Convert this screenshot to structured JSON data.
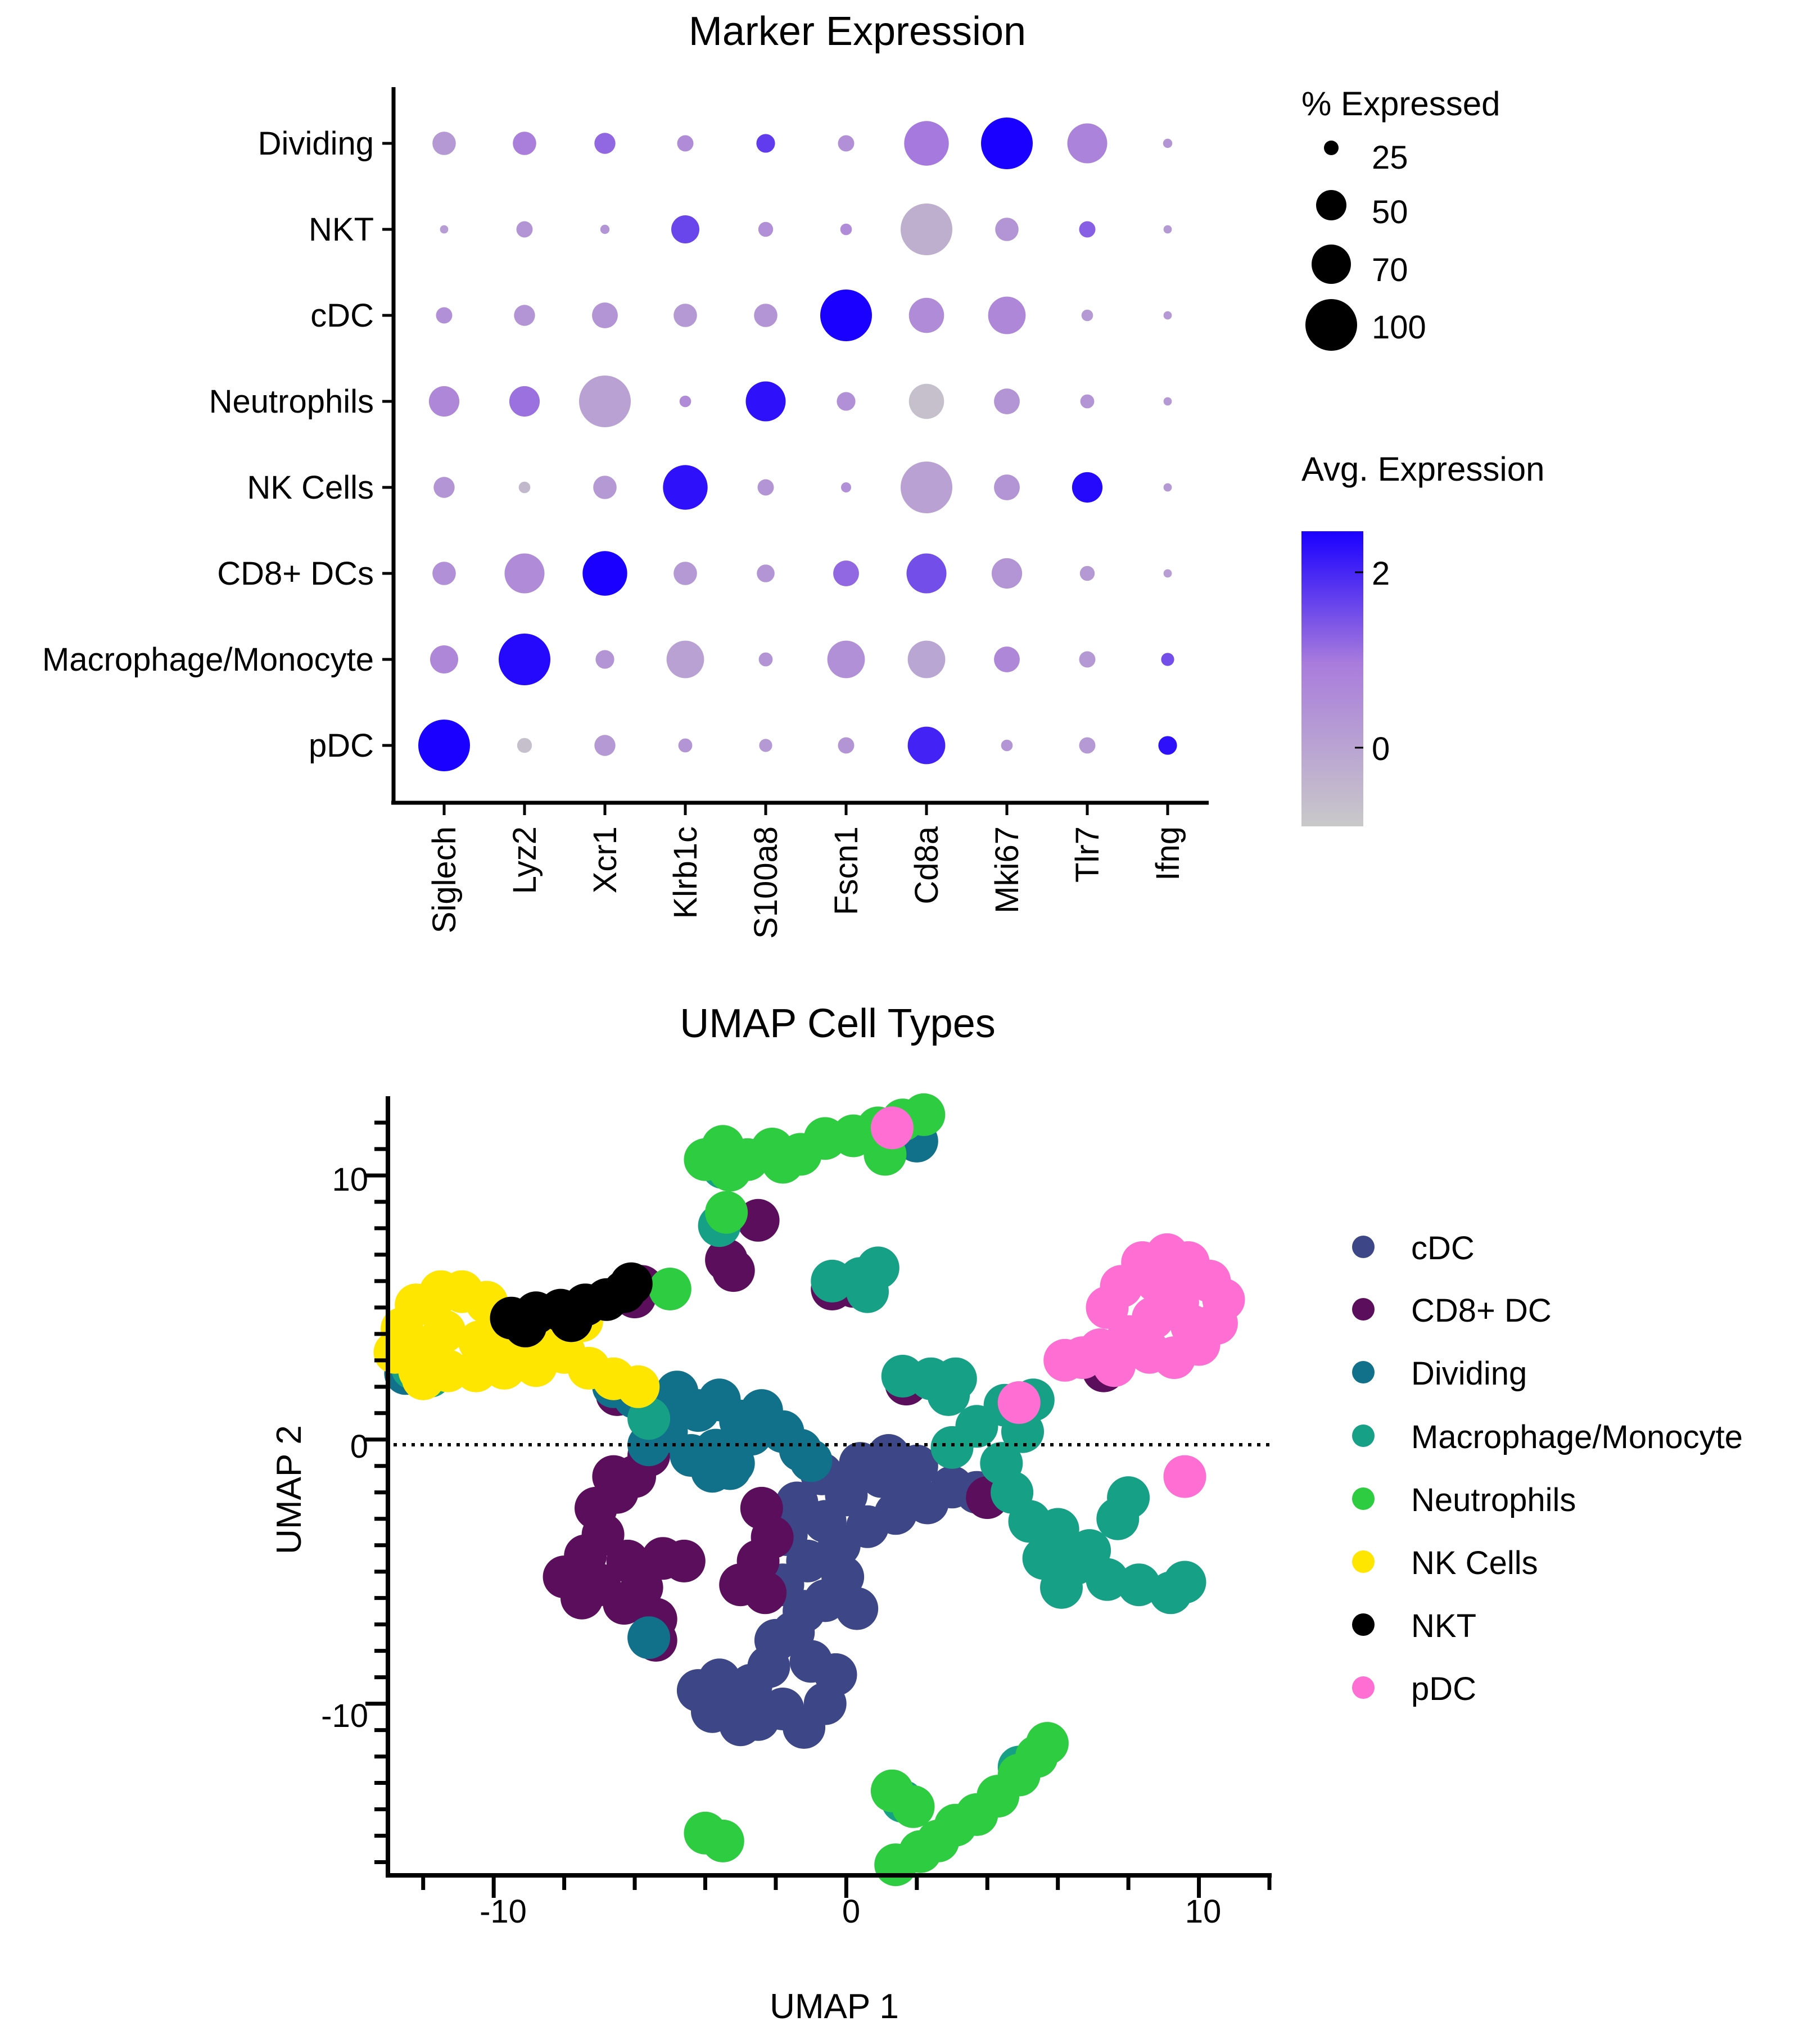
{
  "chart_data": [
    {
      "type": "dotplot",
      "title": "Marker Expression",
      "genes": [
        "Siglech",
        "Lyz2",
        "Xcr1",
        "Klrb1c",
        "S100a8",
        "Fscn1",
        "Cd8a",
        "Mki67",
        "Tlr7",
        "Ifng"
      ],
      "cell_types": [
        "Dividing",
        "NKT",
        "cDC",
        "Neutrophils",
        "NK Cells",
        "CD8+ DCs",
        "Macrophage/Monocyte",
        "pDC"
      ],
      "pct_expressed": [
        [
          40,
          40,
          35,
          25,
          30,
          25,
          85,
          100,
          75,
          10
        ],
        [
          8,
          25,
          10,
          50,
          22,
          15,
          100,
          40,
          25,
          8
        ],
        [
          25,
          35,
          45,
          40,
          40,
          100,
          65,
          70,
          15,
          8
        ],
        [
          55,
          55,
          100,
          15,
          75,
          30,
          65,
          45,
          20,
          8
        ],
        [
          35,
          15,
          40,
          85,
          25,
          12,
          100,
          45,
          55,
          8
        ],
        [
          40,
          75,
          85,
          40,
          28,
          45,
          75,
          55,
          22,
          8
        ],
        [
          50,
          100,
          30,
          70,
          20,
          70,
          70,
          45,
          25,
          18
        ],
        [
          100,
          22,
          35,
          20,
          18,
          25,
          70,
          15,
          25,
          30
        ]
      ],
      "avg_expression": [
        [
          0.3,
          0.9,
          1.2,
          0.6,
          1.7,
          0.5,
          1.0,
          2.4,
          0.8,
          0.4
        ],
        [
          0.2,
          0.4,
          0.4,
          1.6,
          0.5,
          0.6,
          -0.2,
          0.4,
          1.3,
          0.3
        ],
        [
          0.5,
          0.4,
          0.4,
          0.3,
          0.4,
          2.4,
          0.6,
          0.7,
          0.3,
          0.3
        ],
        [
          0.7,
          1.1,
          0.1,
          0.6,
          2.2,
          0.5,
          -0.6,
          0.4,
          0.4,
          0.3
        ],
        [
          0.4,
          -0.4,
          0.3,
          2.2,
          0.4,
          0.5,
          0.1,
          0.4,
          2.3,
          0.3
        ],
        [
          0.5,
          0.6,
          2.4,
          0.3,
          0.4,
          1.2,
          1.5,
          0.4,
          0.3,
          0.2
        ],
        [
          0.7,
          2.3,
          0.4,
          0.1,
          0.4,
          0.5,
          0.0,
          0.7,
          0.3,
          1.5
        ],
        [
          2.4,
          -0.6,
          0.3,
          0.4,
          0.3,
          0.4,
          2.0,
          0.4,
          0.3,
          2.2
        ]
      ],
      "size_legend": {
        "title": "% Expressed",
        "values": [
          25,
          50,
          70,
          100
        ]
      },
      "color_legend": {
        "title": "Avg. Expression",
        "ticks": [
          "2",
          "0"
        ],
        "range": [
          -0.8,
          2.4
        ],
        "colors": [
          "#c9c9c9",
          "#a97cdc",
          "#1a00ff"
        ]
      }
    },
    {
      "type": "scatter",
      "title": "UMAP Cell Types",
      "xlabel": "UMAP 1",
      "ylabel": "UMAP 2",
      "xlim": [
        -13,
        12
      ],
      "ylim": [
        -16.5,
        13
      ],
      "x_ticks": [
        "-10",
        "0",
        "10"
      ],
      "y_ticks": [
        "10",
        "0",
        "-10"
      ],
      "reference_line": {
        "y": 0,
        "style": "dotted"
      },
      "legend": [
        {
          "name": "cDC",
          "color": "#3d4687"
        },
        {
          "name": "CD8+ DC",
          "color": "#5b0e5b"
        },
        {
          "name": "Dividing",
          "color": "#11708a"
        },
        {
          "name": "Macrophage/Monocyte",
          "color": "#16a085"
        },
        {
          "name": "Neutrophils",
          "color": "#2ecc40"
        },
        {
          "name": "NK Cells",
          "color": "#ffe600"
        },
        {
          "name": "NKT",
          "color": "#000000"
        },
        {
          "name": "pDC",
          "color": "#ff6ed2"
        }
      ],
      "clusters": [
        {
          "type": "cDC",
          "points": [
            [
              -4.2,
              -9.5
            ],
            [
              -3.8,
              -10.3
            ],
            [
              -3.2,
              -9.9
            ],
            [
              -2.5,
              -10.6
            ],
            [
              -1.8,
              -10.2
            ],
            [
              -1.2,
              -10.9
            ],
            [
              -0.6,
              -10.0
            ],
            [
              -3.6,
              -9.1
            ],
            [
              -2.2,
              -8.6
            ],
            [
              -1.0,
              -8.4
            ],
            [
              -0.3,
              -8.9
            ],
            [
              -2.0,
              -7.6
            ],
            [
              -1.2,
              -6.5
            ],
            [
              -1.8,
              -5.5
            ],
            [
              -1.1,
              -4.6
            ],
            [
              -1.7,
              -3.6
            ],
            [
              -1.4,
              -2.4
            ],
            [
              -0.6,
              -3.1
            ],
            [
              -0.2,
              -4.0
            ],
            [
              0.6,
              -3.3
            ],
            [
              1.4,
              -2.8
            ],
            [
              1.6,
              -2.0
            ],
            [
              2.3,
              -2.4
            ],
            [
              3.0,
              -1.8
            ],
            [
              3.7,
              -2.0
            ],
            [
              2.0,
              -1.0
            ],
            [
              1.0,
              -1.4
            ],
            [
              0.0,
              -2.1
            ],
            [
              -0.7,
              -1.3
            ],
            [
              0.4,
              -0.9
            ],
            [
              1.2,
              -0.6
            ],
            [
              -0.1,
              -5.2
            ],
            [
              -0.6,
              -6.1
            ],
            [
              0.3,
              -6.4
            ],
            [
              -1.5,
              -7.3
            ],
            [
              -2.7,
              -9.3
            ],
            [
              -3.0,
              -10.8
            ]
          ]
        },
        {
          "type": "CD8+ DC",
          "points": [
            [
              -8.0,
              -5.2
            ],
            [
              -7.5,
              -6.0
            ],
            [
              -7.0,
              -5.5
            ],
            [
              -7.4,
              -4.4
            ],
            [
              -6.9,
              -3.6
            ],
            [
              -7.1,
              -2.6
            ],
            [
              -6.5,
              -2.0
            ],
            [
              -6.0,
              -1.4
            ],
            [
              -5.6,
              -0.6
            ],
            [
              -6.2,
              -4.6
            ],
            [
              -5.8,
              -5.6
            ],
            [
              -5.4,
              -6.8
            ],
            [
              -5.4,
              -7.6
            ],
            [
              -6.3,
              -6.2
            ],
            [
              -5.2,
              -4.5
            ],
            [
              -4.6,
              -4.6
            ],
            [
              -6.6,
              -1.4
            ],
            [
              -3.0,
              -5.5
            ],
            [
              -2.3,
              -5.8
            ],
            [
              -2.1,
              -3.7
            ],
            [
              -2.4,
              -2.6
            ],
            [
              -2.5,
              -4.6
            ],
            [
              -9.8,
              3.9
            ],
            [
              -8.5,
              4.1
            ],
            [
              -6.0,
              5.4
            ],
            [
              -5.8,
              5.8
            ],
            [
              -3.2,
              6.4
            ],
            [
              -3.4,
              6.8
            ],
            [
              -2.5,
              8.3
            ],
            [
              -0.4,
              5.7
            ],
            [
              0.2,
              5.8
            ],
            [
              1.7,
              2.1
            ],
            [
              2.8,
              2.0
            ],
            [
              4.0,
              -2.2
            ],
            [
              7.3,
              2.6
            ],
            [
              -6.5,
              1.7
            ]
          ]
        },
        {
          "type": "Dividing",
          "points": [
            [
              -6.6,
              2.0
            ],
            [
              -6.0,
              1.6
            ],
            [
              -5.4,
              1.0
            ],
            [
              -4.8,
              1.8
            ],
            [
              -4.2,
              1.1
            ],
            [
              -3.6,
              1.5
            ],
            [
              -3.0,
              0.7
            ],
            [
              -2.4,
              1.1
            ],
            [
              -1.8,
              0.3
            ],
            [
              -1.3,
              -0.4
            ],
            [
              -4.4,
              -0.6
            ],
            [
              -3.7,
              -0.4
            ],
            [
              -3.2,
              -0.9
            ],
            [
              -5.1,
              0.3
            ],
            [
              -5.6,
              -0.2
            ],
            [
              -3.8,
              -1.2
            ],
            [
              -2.7,
              0.2
            ],
            [
              -1.0,
              -0.8
            ],
            [
              -12.5,
              2.5
            ],
            [
              2.0,
              11.3
            ],
            [
              -5.6,
              -7.5
            ],
            [
              -3.3,
              -1.1
            ]
          ]
        },
        {
          "type": "Macrophage/Monocyte",
          "points": [
            [
              3.0,
              -0.3
            ],
            [
              3.7,
              0.5
            ],
            [
              4.5,
              1.3
            ],
            [
              5.3,
              1.5
            ],
            [
              5.0,
              0.3
            ],
            [
              4.4,
              -0.9
            ],
            [
              4.7,
              -2.0
            ],
            [
              5.2,
              -3.1
            ],
            [
              6.0,
              -3.4
            ],
            [
              6.5,
              -4.7
            ],
            [
              7.4,
              -5.3
            ],
            [
              8.3,
              -5.5
            ],
            [
              9.2,
              -5.8
            ],
            [
              9.6,
              -5.4
            ],
            [
              7.7,
              -3.0
            ],
            [
              8.0,
              -2.2
            ],
            [
              6.9,
              -4.2
            ],
            [
              5.6,
              -4.5
            ],
            [
              6.1,
              -5.6
            ],
            [
              1.6,
              2.4
            ],
            [
              2.4,
              2.3
            ],
            [
              2.9,
              1.7
            ],
            [
              3.1,
              2.3
            ],
            [
              -0.4,
              6.0
            ],
            [
              0.4,
              6.1
            ],
            [
              0.9,
              6.5
            ],
            [
              0.6,
              5.6
            ],
            [
              -3.6,
              8.1
            ],
            [
              -11.8,
              2.4
            ],
            [
              -12.3,
              2.7
            ],
            [
              -3.5,
              10.3
            ],
            [
              1.6,
              -13.7
            ],
            [
              4.9,
              -12.4
            ],
            [
              -5.6,
              0.8
            ]
          ]
        },
        {
          "type": "Neutrophils",
          "points": [
            [
              -4.0,
              10.6
            ],
            [
              -3.5,
              11.1
            ],
            [
              -2.8,
              10.6
            ],
            [
              -2.1,
              11.0
            ],
            [
              -1.3,
              10.8
            ],
            [
              -0.6,
              11.4
            ],
            [
              0.2,
              11.5
            ],
            [
              0.9,
              11.8
            ],
            [
              1.6,
              12.1
            ],
            [
              2.2,
              12.3
            ],
            [
              -1.8,
              10.5
            ],
            [
              -3.3,
              10.2
            ],
            [
              1.1,
              10.8
            ],
            [
              -3.4,
              8.6
            ],
            [
              -4.0,
              -14.9
            ],
            [
              -3.5,
              -15.2
            ],
            [
              1.4,
              -16.1
            ],
            [
              2.1,
              -15.6
            ],
            [
              2.6,
              -15.2
            ],
            [
              3.1,
              -14.6
            ],
            [
              3.7,
              -14.2
            ],
            [
              4.3,
              -13.5
            ],
            [
              4.9,
              -12.7
            ],
            [
              5.4,
              -12.0
            ],
            [
              5.7,
              -11.5
            ],
            [
              1.3,
              -13.3
            ],
            [
              1.9,
              -13.9
            ],
            [
              -5.0,
              5.7
            ]
          ]
        },
        {
          "type": "NK Cells",
          "points": [
            [
              -12.6,
              4.2
            ],
            [
              -12.2,
              5.1
            ],
            [
              -11.5,
              5.6
            ],
            [
              -10.9,
              5.6
            ],
            [
              -10.2,
              5.2
            ],
            [
              -9.5,
              4.5
            ],
            [
              -8.8,
              3.8
            ],
            [
              -8.0,
              3.3
            ],
            [
              -7.3,
              2.7
            ],
            [
              -6.6,
              2.3
            ],
            [
              -5.9,
              2.0
            ],
            [
              -12.8,
              3.3
            ],
            [
              -12.1,
              2.6
            ],
            [
              -11.3,
              2.6
            ],
            [
              -10.5,
              2.6
            ],
            [
              -9.7,
              2.7
            ],
            [
              -8.8,
              2.8
            ],
            [
              -11.4,
              4.1
            ],
            [
              -10.4,
              3.7
            ],
            [
              -9.6,
              3.3
            ],
            [
              -11.9,
              3.5
            ],
            [
              -7.5,
              4.5
            ],
            [
              -8.9,
              4.6
            ],
            [
              -12.0,
              2.3
            ]
          ]
        },
        {
          "type": "NKT",
          "points": [
            [
              -9.5,
              4.6
            ],
            [
              -8.8,
              4.8
            ],
            [
              -8.1,
              4.9
            ],
            [
              -7.4,
              5.1
            ],
            [
              -6.8,
              5.3
            ],
            [
              -6.3,
              5.6
            ],
            [
              -6.1,
              5.9
            ],
            [
              -9.1,
              4.3
            ],
            [
              -7.8,
              4.5
            ]
          ]
        },
        {
          "type": "pDC",
          "points": [
            [
              7.4,
              5.0
            ],
            [
              7.8,
              5.8
            ],
            [
              8.4,
              6.7
            ],
            [
              9.1,
              7.0
            ],
            [
              9.7,
              6.7
            ],
            [
              10.3,
              6.0
            ],
            [
              10.7,
              5.3
            ],
            [
              10.5,
              4.4
            ],
            [
              10.0,
              3.6
            ],
            [
              9.3,
              3.1
            ],
            [
              8.6,
              3.3
            ],
            [
              8.0,
              3.9
            ],
            [
              8.7,
              4.6
            ],
            [
              9.4,
              5.2
            ],
            [
              9.8,
              4.3
            ],
            [
              8.8,
              6.0
            ],
            [
              9.5,
              5.9
            ],
            [
              7.2,
              3.4
            ],
            [
              6.7,
              3.1
            ],
            [
              6.2,
              3.0
            ],
            [
              7.6,
              2.8
            ],
            [
              1.3,
              11.8
            ],
            [
              4.9,
              1.4
            ],
            [
              9.6,
              -1.4
            ]
          ]
        }
      ]
    }
  ]
}
